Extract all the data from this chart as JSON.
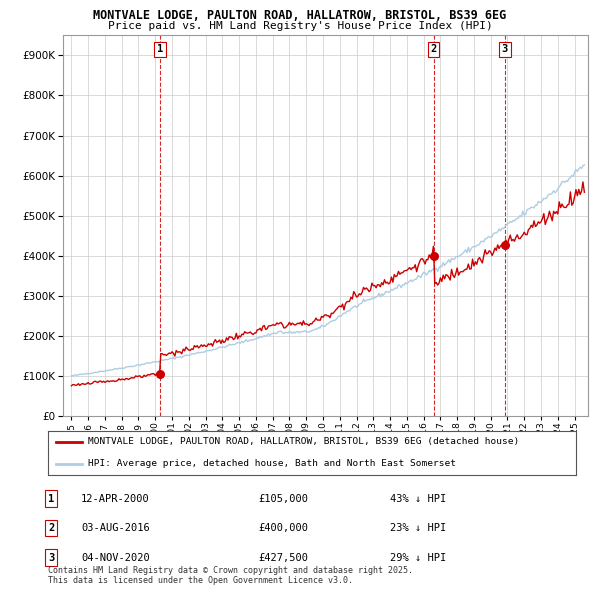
{
  "title": "MONTVALE LODGE, PAULTON ROAD, HALLATROW, BRISTOL, BS39 6EG",
  "subtitle": "Price paid vs. HM Land Registry's House Price Index (HPI)",
  "legend_entry1": "MONTVALE LODGE, PAULTON ROAD, HALLATROW, BRISTOL, BS39 6EG (detached house)",
  "legend_entry2": "HPI: Average price, detached house, Bath and North East Somerset",
  "transactions": [
    {
      "num": 1,
      "date": "12-APR-2000",
      "price": 105000,
      "pct": "43%",
      "x_year": 2000.28
    },
    {
      "num": 2,
      "date": "03-AUG-2016",
      "price": 400000,
      "pct": "23%",
      "x_year": 2016.59
    },
    {
      "num": 3,
      "date": "04-NOV-2020",
      "price": 427500,
      "pct": "29%",
      "x_year": 2020.84
    }
  ],
  "footer": "Contains HM Land Registry data © Crown copyright and database right 2025.\nThis data is licensed under the Open Government Licence v3.0.",
  "ylim": [
    0,
    950000
  ],
  "xlim_start": 1994.5,
  "xlim_end": 2025.8,
  "hpi_color": "#aecde3",
  "price_color": "#cc0000",
  "vline_color": "#cc0000",
  "background_color": "#ffffff",
  "grid_color": "#cccccc"
}
